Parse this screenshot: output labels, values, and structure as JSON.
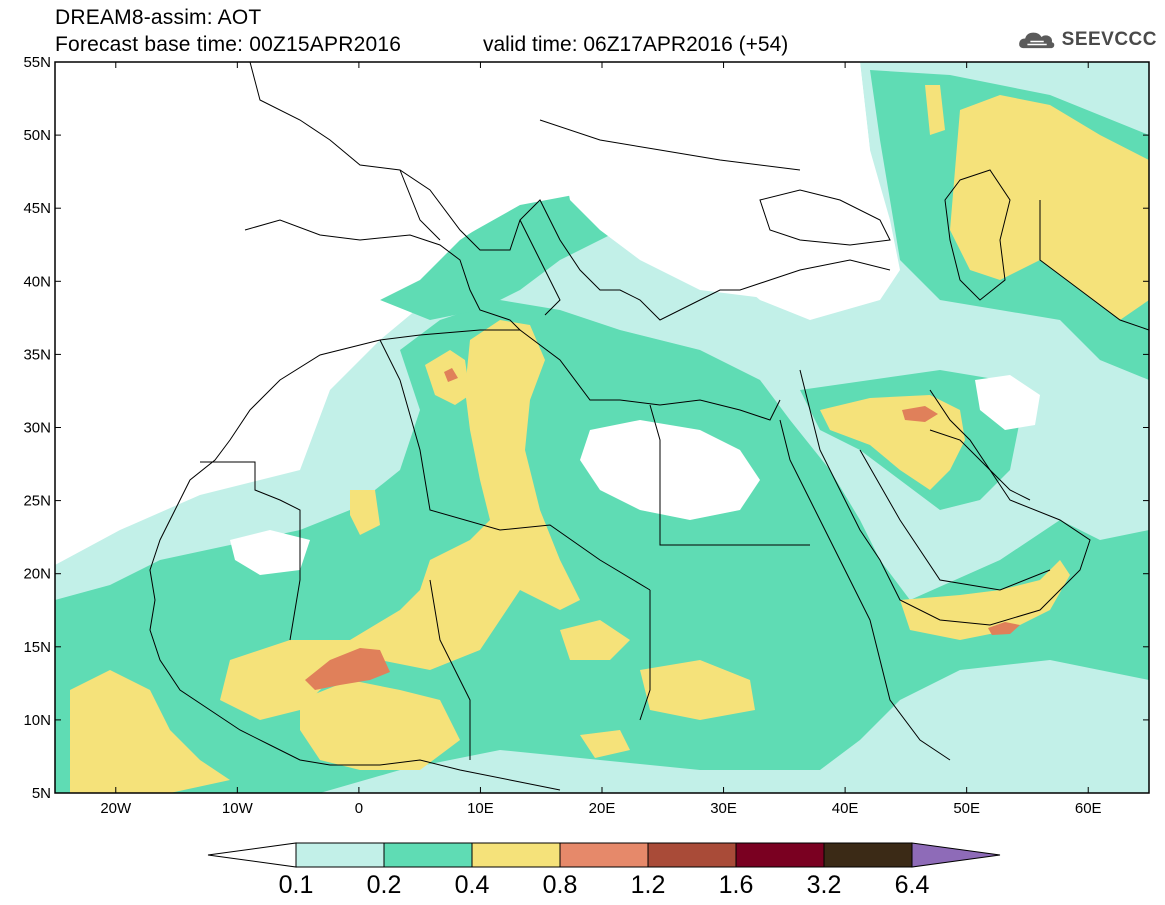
{
  "header": {
    "title_line_1": "DREAM8-assim: AOT",
    "title_line_2": "Forecast base time: 00Z15APR2016",
    "valid_time": "valid time: 06Z17APR2016 (+54)"
  },
  "logo": {
    "text": "SEEVCCC",
    "icon": "cloud-icon"
  },
  "map": {
    "lon_range": [
      -25,
      65
    ],
    "lat_range": [
      5,
      55
    ],
    "lat_ticks": [
      {
        "value": 55,
        "label": "55N"
      },
      {
        "value": 50,
        "label": "50N"
      },
      {
        "value": 45,
        "label": "45N"
      },
      {
        "value": 40,
        "label": "40N"
      },
      {
        "value": 35,
        "label": "35N"
      },
      {
        "value": 30,
        "label": "30N"
      },
      {
        "value": 25,
        "label": "25N"
      },
      {
        "value": 20,
        "label": "20N"
      },
      {
        "value": 15,
        "label": "15N"
      },
      {
        "value": 10,
        "label": "10N"
      },
      {
        "value": 5,
        "label": "5N"
      }
    ],
    "lon_ticks": [
      {
        "value": -20,
        "label": "20W"
      },
      {
        "value": -10,
        "label": "10W"
      },
      {
        "value": 0,
        "label": "0"
      },
      {
        "value": 10,
        "label": "10E"
      },
      {
        "value": 20,
        "label": "20E"
      },
      {
        "value": 30,
        "label": "30E"
      },
      {
        "value": 40,
        "label": "40E"
      },
      {
        "value": 50,
        "label": "50E"
      },
      {
        "value": 60,
        "label": "60E"
      }
    ],
    "field_colors": {
      "light": "#c2f0e8",
      "green": "#5fdcb4",
      "yellow": "#f5e27a",
      "orange": "#e0805a"
    }
  },
  "colorbar": {
    "labels": [
      "0.1",
      "0.2",
      "0.4",
      "0.8",
      "1.2",
      "1.6",
      "3.2",
      "6.4"
    ],
    "colors": [
      "#ffffff",
      "#c2f0e8",
      "#5fdcb4",
      "#f5e27a",
      "#e6896a",
      "#a94b38",
      "#7a0021",
      "#3b2a16",
      "#8e6bb8"
    ]
  }
}
